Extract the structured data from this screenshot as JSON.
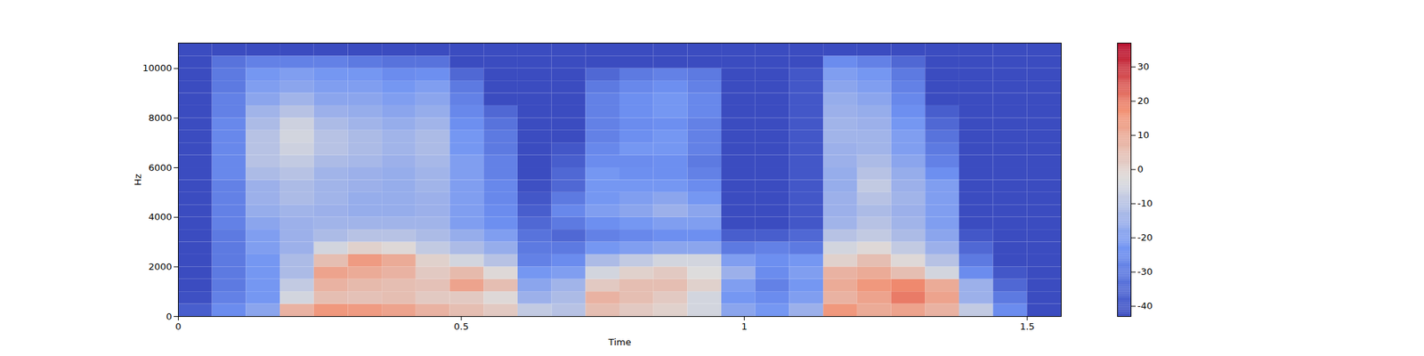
{
  "chart_data": {
    "type": "heatmap",
    "x_label": "Time",
    "y_label": "Hz",
    "xlim": [
      0,
      1.56
    ],
    "xticks": [
      0,
      0.5,
      1,
      1.5
    ],
    "ylim": [
      0,
      11025
    ],
    "yticks": [
      0,
      2000,
      4000,
      6000,
      8000,
      10000
    ],
    "x_edges": [
      0,
      0.06,
      0.12,
      0.18,
      0.24,
      0.3,
      0.36,
      0.42,
      0.48,
      0.54,
      0.6,
      0.66,
      0.72,
      0.78,
      0.84,
      0.9,
      0.96,
      1.02,
      1.08,
      1.14,
      1.2,
      1.26,
      1.32,
      1.38,
      1.44,
      1.5,
      1.56
    ],
    "y_edges": [
      0,
      500,
      1000,
      1500,
      2000,
      2500,
      3000,
      3500,
      4000,
      4500,
      5000,
      5500,
      6000,
      6500,
      7000,
      7500,
      8000,
      8500,
      9000,
      9500,
      10000,
      10500,
      11025
    ],
    "z": [
      [
        -38,
        -42,
        -43,
        -43,
        -43,
        -43,
        -43,
        -43,
        -43,
        -43,
        -43,
        -43,
        -43,
        -43,
        -43,
        -43,
        -43,
        -43,
        -43,
        -43,
        -43,
        -43
      ],
      [
        -25,
        -28,
        -30,
        -30,
        -30,
        -30,
        -30,
        -28,
        -28,
        -28,
        -28,
        -26,
        -26,
        -26,
        -26,
        -26,
        -28,
        -28,
        -30,
        -30,
        -32,
        -43
      ],
      [
        -18,
        -22,
        -22,
        -22,
        -22,
        -20,
        -20,
        -18,
        -16,
        -15,
        -15,
        -12,
        -10,
        -10,
        -10,
        -12,
        -14,
        -18,
        -20,
        -22,
        -28,
        -43
      ],
      [
        8,
        -5,
        -8,
        -12,
        -12,
        -15,
        -15,
        -15,
        -14,
        -12,
        -12,
        -10,
        -8,
        -6,
        -5,
        -6,
        -10,
        -14,
        -18,
        -20,
        -28,
        -43
      ],
      [
        15,
        5,
        8,
        12,
        5,
        -5,
        -12,
        -14,
        -15,
        -14,
        -14,
        -14,
        -12,
        -10,
        -10,
        -12,
        -15,
        -18,
        -20,
        -22,
        -28,
        -43
      ],
      [
        14,
        4,
        6,
        10,
        14,
        0,
        -10,
        -14,
        -16,
        -16,
        -15,
        -15,
        -13,
        -12,
        -12,
        -14,
        -16,
        -18,
        -20,
        -22,
        -30,
        -43
      ],
      [
        12,
        5,
        5,
        8,
        10,
        -2,
        -10,
        -14,
        -16,
        -16,
        -16,
        -16,
        -15,
        -14,
        -14,
        -16,
        -18,
        -20,
        -22,
        -25,
        -32,
        -43
      ],
      [
        8,
        2,
        4,
        2,
        0,
        -8,
        -12,
        -14,
        -15,
        -15,
        -14,
        -14,
        -13,
        -12,
        -12,
        -14,
        -16,
        -18,
        -20,
        -24,
        -32,
        -43
      ],
      [
        5,
        2,
        12,
        6,
        -5,
        -12,
        -16,
        -20,
        -20,
        -20,
        -20,
        -20,
        -20,
        -22,
        -22,
        -24,
        -26,
        -28,
        -30,
        -35,
        -43,
        -43
      ],
      [
        2,
        -2,
        5,
        -2,
        -10,
        -16,
        -20,
        -24,
        -25,
        -26,
        -26,
        -28,
        -28,
        -30,
        -30,
        -32,
        -35,
        -43,
        -43,
        -43,
        -43,
        -43
      ],
      [
        -8,
        -15,
        -18,
        -22,
        -28,
        -30,
        -32,
        -35,
        -38,
        -40,
        -42,
        -43,
        -43,
        -43,
        -43,
        -43,
        -43,
        -43,
        -43,
        -43,
        -43,
        -43
      ],
      [
        -10,
        -12,
        -14,
        -20,
        -25,
        -30,
        -35,
        -30,
        -26,
        -30,
        -35,
        -35,
        -38,
        -40,
        -43,
        -43,
        -43,
        -43,
        -43,
        -43,
        -43,
        -43
      ],
      [
        5,
        8,
        2,
        -5,
        -12,
        -22,
        -28,
        -24,
        -20,
        -22,
        -22,
        -22,
        -25,
        -26,
        -28,
        -28,
        -28,
        -28,
        -30,
        -35,
        -43,
        -43
      ],
      [
        2,
        5,
        5,
        0,
        -8,
        -20,
        -26,
        -22,
        -18,
        -20,
        -22,
        -24,
        -25,
        -22,
        -24,
        -25,
        -24,
        -24,
        -26,
        -30,
        -43,
        -43
      ],
      [
        0,
        2,
        5,
        2,
        -5,
        -18,
        -24,
        -20,
        -15,
        -18,
        -22,
        -24,
        -24,
        -22,
        -22,
        -24,
        -22,
        -22,
        -24,
        -28,
        -43,
        -43
      ],
      [
        -5,
        -5,
        0,
        -3,
        -5,
        -18,
        -24,
        -20,
        -18,
        -22,
        -25,
        -28,
        -30,
        -28,
        -28,
        -28,
        -26,
        -26,
        -28,
        -30,
        -43,
        -43
      ],
      [
        -18,
        -22,
        -20,
        -15,
        -20,
        -30,
        -38,
        -43,
        -43,
        -43,
        -43,
        -43,
        -43,
        -43,
        -43,
        -43,
        -43,
        -43,
        -43,
        -43,
        -43,
        -43
      ],
      [
        -22,
        -25,
        -28,
        -25,
        -24,
        -28,
        -38,
        -43,
        -43,
        -43,
        -43,
        -43,
        -43,
        -43,
        -43,
        -43,
        -43,
        -43,
        -43,
        -43,
        -43,
        -43
      ],
      [
        -15,
        -20,
        -22,
        -20,
        -22,
        -30,
        -35,
        -40,
        -40,
        -40,
        -40,
        -40,
        -40,
        -40,
        -40,
        -40,
        -40,
        -40,
        -40,
        -40,
        -43,
        -43
      ],
      [
        15,
        8,
        10,
        8,
        0,
        -5,
        -10,
        -14,
        -15,
        -15,
        -16,
        -16,
        -15,
        -15,
        -14,
        -14,
        -15,
        -16,
        -18,
        -20,
        -25,
        -43
      ],
      [
        10,
        12,
        15,
        10,
        5,
        -2,
        -8,
        -10,
        -12,
        -10,
        -8,
        -10,
        -12,
        -14,
        -14,
        -15,
        -16,
        -18,
        -20,
        -22,
        -28,
        -43
      ],
      [
        12,
        20,
        18,
        5,
        -2,
        -8,
        -12,
        -14,
        -15,
        -14,
        -15,
        -16,
        -18,
        -20,
        -20,
        -22,
        -24,
        -26,
        -28,
        -30,
        -35,
        -43
      ],
      [
        8,
        12,
        10,
        -5,
        -10,
        -15,
        -18,
        -20,
        -20,
        -20,
        -20,
        -24,
        -28,
        -30,
        -32,
        -35,
        -38,
        -43,
        -43,
        -43,
        -43,
        -43
      ],
      [
        -8,
        -15,
        -15,
        -25,
        -30,
        -35,
        -40,
        -43,
        -43,
        -43,
        -43,
        -43,
        -43,
        -43,
        -43,
        -43,
        -43,
        -43,
        -43,
        -43,
        -43,
        -43
      ],
      [
        -25,
        -30,
        -35,
        -40,
        -43,
        -43,
        -43,
        -43,
        -43,
        -43,
        -43,
        -43,
        -43,
        -43,
        -43,
        -43,
        -43,
        -43,
        -43,
        -43,
        -43,
        -43
      ],
      [
        -43,
        -43,
        -43,
        -43,
        -43,
        -43,
        -43,
        -43,
        -43,
        -43,
        -43,
        -43,
        -43,
        -43,
        -43,
        -43,
        -43,
        -43,
        -43,
        -43,
        -43,
        -43
      ]
    ],
    "colorbar": {
      "range": [
        -43,
        37
      ],
      "ticks": [
        -40,
        -30,
        -20,
        -10,
        0,
        10,
        20,
        30
      ]
    }
  }
}
